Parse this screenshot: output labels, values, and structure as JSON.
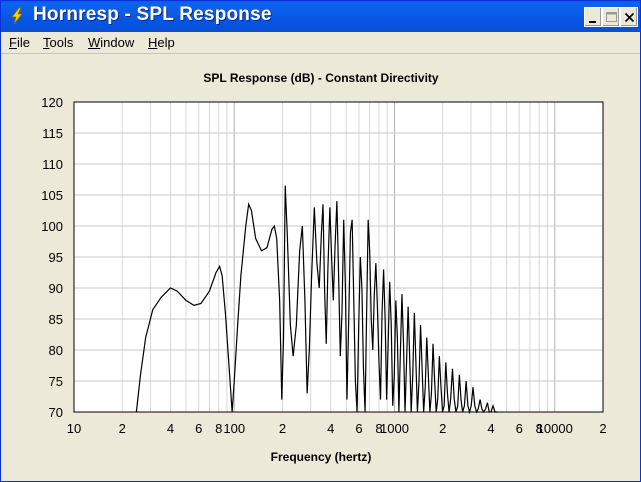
{
  "window": {
    "title": "Hornresp - SPL Response",
    "icon": "lightning-icon"
  },
  "menu": [
    {
      "label": "File",
      "underline": "F"
    },
    {
      "label": "Tools",
      "underline": "T"
    },
    {
      "label": "Window",
      "underline": "W"
    },
    {
      "label": "Help",
      "underline": "H"
    }
  ],
  "colors": {
    "titlebar": "#0b5be8",
    "plot_bg": "#ffffff",
    "grid": "#c8c8c8",
    "curve": "#000000"
  },
  "chart_data": {
    "type": "line",
    "title": "SPL Response (dB) - Constant Directivity",
    "xlabel": "Frequency (hertz)",
    "ylabel": "",
    "x_scale": "log",
    "xlim": [
      10,
      20000
    ],
    "ylim": [
      70,
      120
    ],
    "yticks": [
      70,
      75,
      80,
      85,
      90,
      95,
      100,
      105,
      110,
      115,
      120
    ],
    "xtick_labels": [
      {
        "value": 10,
        "label": "10"
      },
      {
        "value": 20,
        "label": "2"
      },
      {
        "value": 40,
        "label": "4"
      },
      {
        "value": 60,
        "label": "6"
      },
      {
        "value": 80,
        "label": "8"
      },
      {
        "value": 100,
        "label": "100"
      },
      {
        "value": 200,
        "label": "2"
      },
      {
        "value": 400,
        "label": "4"
      },
      {
        "value": 600,
        "label": "6"
      },
      {
        "value": 800,
        "label": "8"
      },
      {
        "value": 1000,
        "label": "1000"
      },
      {
        "value": 2000,
        "label": "2"
      },
      {
        "value": 4000,
        "label": "4"
      },
      {
        "value": 6000,
        "label": "6"
      },
      {
        "value": 8000,
        "label": "8"
      },
      {
        "value": 10000,
        "label": "10000"
      },
      {
        "value": 20000,
        "label": "2"
      }
    ],
    "grid": true,
    "series": [
      {
        "points": [
          [
            24.5,
            70
          ],
          [
            26,
            76
          ],
          [
            28,
            82
          ],
          [
            31,
            86.5
          ],
          [
            35,
            88.5
          ],
          [
            40,
            90
          ],
          [
            44,
            89.5
          ],
          [
            50,
            88
          ],
          [
            56,
            87.2
          ],
          [
            62,
            87.5
          ],
          [
            70,
            89.5
          ],
          [
            77,
            92.5
          ],
          [
            81,
            93.5
          ],
          [
            84,
            92
          ],
          [
            88,
            86
          ],
          [
            93,
            77
          ],
          [
            97,
            70
          ],
          [
            100,
            75
          ],
          [
            105,
            84
          ],
          [
            110,
            92
          ],
          [
            118,
            100
          ],
          [
            123,
            103.5
          ],
          [
            128,
            102.5
          ],
          [
            136,
            98
          ],
          [
            148,
            96
          ],
          [
            160,
            96.5
          ],
          [
            172,
            99.5
          ],
          [
            178,
            100
          ],
          [
            184,
            98
          ],
          [
            192,
            88
          ],
          [
            198,
            72
          ],
          [
            203,
            82
          ],
          [
            208,
            106.5
          ],
          [
            214,
            99
          ],
          [
            224,
            84
          ],
          [
            233,
            79
          ],
          [
            244,
            84
          ],
          [
            256,
            96
          ],
          [
            266,
            100
          ],
          [
            276,
            88
          ],
          [
            285,
            73
          ],
          [
            294,
            80
          ],
          [
            304,
            92
          ],
          [
            316,
            103
          ],
          [
            328,
            94
          ],
          [
            339,
            90
          ],
          [
            350,
            99
          ],
          [
            358,
            103.5
          ],
          [
            366,
            90
          ],
          [
            375,
            81
          ],
          [
            384,
            93
          ],
          [
            395,
            103
          ],
          [
            405,
            95
          ],
          [
            415,
            88
          ],
          [
            426,
            97
          ],
          [
            437,
            104
          ],
          [
            448,
            92
          ],
          [
            459,
            79
          ],
          [
            470,
            86
          ],
          [
            482,
            101
          ],
          [
            494,
            90
          ],
          [
            505,
            72
          ],
          [
            518,
            85
          ],
          [
            531,
            99
          ],
          [
            544,
            101
          ],
          [
            557,
            88
          ],
          [
            570,
            75
          ],
          [
            584,
            70
          ],
          [
            598,
            84
          ],
          [
            612,
            95
          ],
          [
            626,
            90
          ],
          [
            640,
            77
          ],
          [
            655,
            70
          ],
          [
            670,
            86
          ],
          [
            685,
            101
          ],
          [
            700,
            96
          ],
          [
            716,
            85
          ],
          [
            732,
            80
          ],
          [
            748,
            89
          ],
          [
            765,
            94
          ],
          [
            782,
            87
          ],
          [
            800,
            78
          ],
          [
            818,
            72
          ],
          [
            836,
            86
          ],
          [
            855,
            93
          ],
          [
            874,
            85
          ],
          [
            893,
            72
          ],
          [
            913,
            81
          ],
          [
            933,
            91
          ],
          [
            954,
            84
          ],
          [
            975,
            71
          ],
          [
            997,
            76
          ],
          [
            1019,
            88
          ],
          [
            1042,
            82
          ],
          [
            1065,
            70
          ],
          [
            1089,
            80
          ],
          [
            1113,
            89
          ],
          [
            1138,
            81
          ],
          [
            1163,
            70
          ],
          [
            1189,
            78
          ],
          [
            1216,
            87
          ],
          [
            1243,
            79
          ],
          [
            1271,
            70
          ],
          [
            1300,
            76
          ],
          [
            1330,
            86
          ],
          [
            1360,
            78
          ],
          [
            1390,
            70
          ],
          [
            1422,
            75
          ],
          [
            1454,
            84
          ],
          [
            1487,
            77
          ],
          [
            1520,
            70
          ],
          [
            1555,
            74
          ],
          [
            1590,
            82
          ],
          [
            1626,
            76
          ],
          [
            1663,
            70
          ],
          [
            1700,
            73
          ],
          [
            1740,
            81
          ],
          [
            1780,
            75
          ],
          [
            1820,
            70
          ],
          [
            1860,
            72
          ],
          [
            1905,
            79
          ],
          [
            1950,
            74
          ],
          [
            1995,
            70
          ],
          [
            2040,
            71
          ],
          [
            2090,
            78
          ],
          [
            2140,
            73
          ],
          [
            2190,
            70
          ],
          [
            2240,
            72
          ],
          [
            2300,
            77
          ],
          [
            2360,
            72
          ],
          [
            2420,
            70
          ],
          [
            2480,
            71
          ],
          [
            2540,
            76
          ],
          [
            2600,
            72
          ],
          [
            2660,
            70
          ],
          [
            2730,
            71
          ],
          [
            2800,
            75
          ],
          [
            2870,
            71
          ],
          [
            2940,
            70
          ],
          [
            3010,
            71
          ],
          [
            3090,
            74
          ],
          [
            3170,
            71
          ],
          [
            3250,
            70
          ],
          [
            3330,
            70.5
          ],
          [
            3420,
            72
          ],
          [
            3510,
            70.5
          ],
          [
            3600,
            70
          ],
          [
            3700,
            70.5
          ],
          [
            3800,
            71.5
          ],
          [
            3900,
            70
          ],
          [
            4000,
            70
          ],
          [
            4120,
            71
          ],
          [
            4240,
            70
          ],
          [
            4400,
            70
          ]
        ]
      }
    ]
  }
}
